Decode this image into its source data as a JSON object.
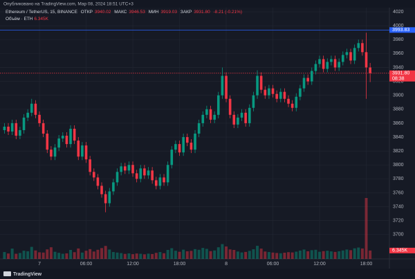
{
  "header": "Опубликовано на TradingView.com, Мар 08, 2024 18:51 UTC+3",
  "footer": "TradingView",
  "chart_data": {
    "type": "candlestick",
    "title": "Ethereum / TetherUS, 15, BINANCE",
    "ohlc_names": [
      "ОТКР",
      "МАКС",
      "МИН",
      "ЗАКР"
    ],
    "last_labels": [
      "3940.02",
      "3946.53",
      "3919.03",
      "3931.80"
    ],
    "change_label": "-8.21 (-0.21%)",
    "up_color": "#089981",
    "down_color": "#f23645",
    "grid": true,
    "ylim": [
      3665,
      4026
    ],
    "yticks": [
      4020,
      4000,
      3980,
      3960,
      3940,
      3920,
      3900,
      3880,
      3860,
      3840,
      3820,
      3800,
      3780,
      3760,
      3740,
      3720,
      3700
    ],
    "categories": [
      null,
      null,
      null,
      null,
      null,
      null,
      null,
      null,
      null,
      "7",
      null,
      null,
      null,
      null,
      null,
      null,
      null,
      null,
      null,
      null,
      null,
      "06:00",
      null,
      null,
      null,
      null,
      null,
      null,
      null,
      null,
      null,
      null,
      null,
      "12:00",
      null,
      null,
      null,
      null,
      null,
      null,
      null,
      null,
      null,
      null,
      null,
      "18:00",
      null,
      null,
      null,
      null,
      null,
      null,
      null,
      null,
      null,
      null,
      null,
      "8",
      null,
      null,
      null,
      null,
      null,
      null,
      null,
      null,
      null,
      null,
      null,
      "06:00",
      null,
      null,
      null,
      null,
      null,
      null,
      null,
      null,
      null,
      null,
      null,
      "12:00",
      null,
      null,
      null,
      null,
      null,
      null,
      null,
      null,
      null,
      null,
      null,
      "18:00",
      null
    ],
    "open": [
      3850,
      3855,
      3848,
      3860,
      3842,
      3850,
      3868,
      3875,
      3888,
      3872,
      3860,
      3845,
      3822,
      3812,
      3825,
      3838,
      3842,
      3830,
      3852,
      3835,
      3812,
      3828,
      3808,
      3790,
      3782,
      3770,
      3758,
      3745,
      3762,
      3775,
      3790,
      3798,
      3792,
      3800,
      3788,
      3780,
      3795,
      3785,
      3792,
      3778,
      3770,
      3782,
      3775,
      3800,
      3822,
      3830,
      3818,
      3840,
      3832,
      3822,
      3845,
      3860,
      3872,
      3880,
      3865,
      3872,
      3900,
      3928,
      3895,
      3872,
      3858,
      3868,
      3875,
      3860,
      3882,
      3900,
      3928,
      3908,
      3900,
      3910,
      3902,
      3895,
      3905,
      3895,
      3888,
      3882,
      3898,
      3910,
      3925,
      3920,
      3935,
      3945,
      3952,
      3938,
      3948,
      3952,
      3940,
      3948,
      3958,
      3962,
      3950,
      3968,
      3975,
      3962,
      3940.02
    ],
    "high": [
      3860,
      3860,
      3865,
      3865,
      3855,
      3873,
      3880,
      3895,
      3893,
      3877,
      3865,
      3850,
      3827,
      3830,
      3843,
      3847,
      3847,
      3857,
      3857,
      3840,
      3833,
      3833,
      3813,
      3795,
      3787,
      3775,
      3763,
      3767,
      3780,
      3795,
      3803,
      3803,
      3805,
      3805,
      3793,
      3800,
      3800,
      3797,
      3797,
      3783,
      3787,
      3787,
      3805,
      3827,
      3835,
      3835,
      3845,
      3845,
      3837,
      3850,
      3865,
      3877,
      3885,
      3885,
      3877,
      3905,
      3940,
      3933,
      3900,
      3877,
      3873,
      3880,
      3880,
      3887,
      3905,
      3936,
      3933,
      3913,
      3915,
      3915,
      3907,
      3910,
      3910,
      3900,
      3893,
      3903,
      3915,
      3930,
      3930,
      3940,
      3950,
      3957,
      3957,
      3953,
      3957,
      3957,
      3953,
      3963,
      3967,
      3967,
      3973,
      3980,
      3980,
      3990,
      3946.53
    ],
    "low": [
      3845,
      3843,
      3843,
      3837,
      3837,
      3845,
      3863,
      3870,
      3867,
      3855,
      3840,
      3817,
      3807,
      3807,
      3820,
      3833,
      3825,
      3825,
      3830,
      3807,
      3807,
      3803,
      3785,
      3777,
      3765,
      3753,
      3732,
      3740,
      3757,
      3770,
      3785,
      3787,
      3787,
      3783,
      3775,
      3775,
      3780,
      3780,
      3773,
      3765,
      3765,
      3770,
      3770,
      3795,
      3817,
      3813,
      3813,
      3827,
      3817,
      3817,
      3840,
      3855,
      3867,
      3860,
      3860,
      3867,
      3895,
      3890,
      3867,
      3853,
      3853,
      3863,
      3855,
      3855,
      3877,
      3895,
      3903,
      3895,
      3895,
      3897,
      3890,
      3890,
      3890,
      3883,
      3877,
      3877,
      3893,
      3905,
      3915,
      3915,
      3930,
      3940,
      3933,
      3933,
      3943,
      3935,
      3935,
      3943,
      3953,
      3945,
      3945,
      3963,
      3957,
      3895,
      3919.03
    ],
    "close": [
      3855,
      3848,
      3860,
      3842,
      3850,
      3868,
      3875,
      3888,
      3872,
      3860,
      3845,
      3822,
      3812,
      3825,
      3838,
      3842,
      3830,
      3852,
      3835,
      3812,
      3828,
      3808,
      3790,
      3782,
      3770,
      3758,
      3745,
      3762,
      3775,
      3790,
      3798,
      3792,
      3800,
      3788,
      3780,
      3795,
      3785,
      3792,
      3778,
      3770,
      3782,
      3775,
      3800,
      3822,
      3830,
      3818,
      3840,
      3832,
      3822,
      3845,
      3860,
      3872,
      3880,
      3865,
      3872,
      3900,
      3928,
      3895,
      3872,
      3858,
      3868,
      3875,
      3860,
      3882,
      3900,
      3928,
      3908,
      3900,
      3910,
      3902,
      3895,
      3905,
      3895,
      3888,
      3882,
      3898,
      3910,
      3925,
      3920,
      3935,
      3945,
      3952,
      3938,
      3948,
      3952,
      3940,
      3948,
      3958,
      3962,
      3950,
      3968,
      3975,
      3962,
      3940.02,
      3931.8
    ],
    "volume": {
      "name": "Объём · ETH",
      "value_label": "6.345K",
      "values": [
        5200,
        4100,
        7800,
        3900,
        4500,
        6200,
        5800,
        9100,
        6400,
        5000,
        4800,
        7200,
        8800,
        5400,
        4600,
        3900,
        4200,
        6800,
        5100,
        7900,
        4800,
        6200,
        7400,
        5600,
        6900,
        8200,
        9800,
        7100,
        5200,
        4800,
        4400,
        3800,
        4200,
        3600,
        4100,
        3900,
        3500,
        4000,
        3700,
        4600,
        5200,
        4300,
        6800,
        8100,
        6200,
        5400,
        7000,
        5800,
        6100,
        7400,
        6900,
        8300,
        7600,
        5900,
        6400,
        8800,
        11200,
        9400,
        7200,
        6800,
        5600,
        4900,
        5300,
        6100,
        7300,
        9900,
        7800,
        5600,
        5200,
        4800,
        4500,
        4300,
        4700,
        5100,
        4900,
        5500,
        6300,
        7100,
        5800,
        6600,
        6900,
        5400,
        5900,
        6200,
        5700,
        5300,
        5800,
        6400,
        7100,
        6600,
        8000,
        8600,
        7900,
        46000,
        6345
      ]
    },
    "price_lines": [
      {
        "value": 3993.83,
        "label": "3993.83",
        "color": "#2962ff"
      },
      {
        "value": 3931.8,
        "label": "3931.80",
        "color": "#f23645"
      }
    ],
    "countdown": "08:38"
  }
}
